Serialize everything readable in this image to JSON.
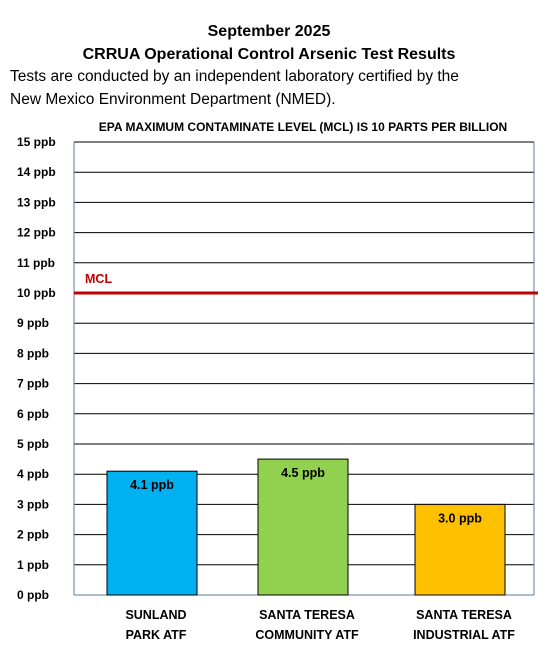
{
  "header": {
    "title_line1": "September 2025",
    "title_line2": "CRRUA Operational Control Arsenic Test Results",
    "description_line1": "Tests are conducted by an independent laboratory certified by the",
    "description_line2": "New Mexico Environment Department (NMED)."
  },
  "chart_data": {
    "type": "bar",
    "title": "EPA MAXIMUM CONTAMINATE LEVEL (MCL) IS 10 PARTS PER BILLION",
    "categories": [
      [
        "SUNLAND",
        "PARK ATF"
      ],
      [
        "SANTA TERESA",
        "COMMUNITY ATF"
      ],
      [
        "SANTA TERESA",
        "INDUSTRIAL ATF"
      ]
    ],
    "values": [
      4.1,
      4.5,
      3.0
    ],
    "value_labels": [
      "4.1 ppb",
      "4.5 ppb",
      "3.0 ppb"
    ],
    "bar_colors": [
      "#00b0f0",
      "#92d050",
      "#ffc000"
    ],
    "ylim": [
      0,
      15
    ],
    "yticks": [
      0,
      1,
      2,
      3,
      4,
      5,
      6,
      7,
      8,
      9,
      10,
      11,
      12,
      13,
      14,
      15
    ],
    "ytick_suffix": " ppb",
    "grid": true,
    "reference_line": {
      "value": 10,
      "label": "MCL",
      "color": "#c00000"
    }
  }
}
